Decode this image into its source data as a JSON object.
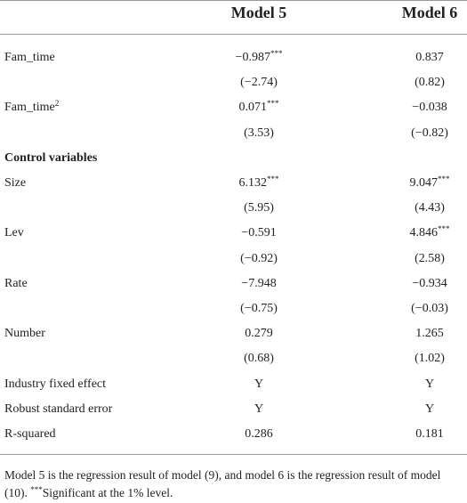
{
  "table": {
    "header": [
      "Model 5",
      "Model 6"
    ],
    "rows": [
      {
        "label": "Fam_time",
        "cells": [
          {
            "value": "−0.987",
            "sig": "***"
          },
          {
            "value": "0.837"
          }
        ]
      },
      {
        "cells": [
          {
            "value": "(−2.74)"
          },
          {
            "value": "(0.82)"
          }
        ]
      },
      {
        "label": "Fam_time",
        "label_sup": "2",
        "cells": [
          {
            "value": "0.071",
            "sig": "***"
          },
          {
            "value": "−0.038"
          }
        ]
      },
      {
        "cells": [
          {
            "value": "(3.53)"
          },
          {
            "value": "(−0.82)"
          }
        ]
      },
      {
        "label": "Control variables",
        "cells": []
      },
      {
        "label": "Size",
        "cells": [
          {
            "value": "6.132",
            "sig": "***"
          },
          {
            "value": "9.047",
            "sig": "***"
          }
        ]
      },
      {
        "cells": [
          {
            "value": "(5.95)"
          },
          {
            "value": "(4.43)"
          }
        ]
      },
      {
        "label": "Lev",
        "cells": [
          {
            "value": "−0.591"
          },
          {
            "value": "4.846",
            "sig": "***"
          }
        ]
      },
      {
        "cells": [
          {
            "value": "(−0.92)"
          },
          {
            "value": "(2.58)"
          }
        ]
      },
      {
        "label": "Rate",
        "cells": [
          {
            "value": "−7.948"
          },
          {
            "value": "−0.934"
          }
        ]
      },
      {
        "cells": [
          {
            "value": "(−0.75)"
          },
          {
            "value": "(−0.03)"
          }
        ]
      },
      {
        "label": "Number",
        "cells": [
          {
            "value": "0.279"
          },
          {
            "value": "1.265"
          }
        ]
      },
      {
        "cells": [
          {
            "value": "(0.68)"
          },
          {
            "value": "(1.02)"
          }
        ]
      },
      {
        "label": "Industry fixed effect",
        "cells": [
          {
            "value": "Y"
          },
          {
            "value": "Y"
          }
        ]
      },
      {
        "label": "Robust standard error",
        "cells": [
          {
            "value": "Y"
          },
          {
            "value": "Y"
          }
        ]
      },
      {
        "label": "R-squared",
        "cells": [
          {
            "value": "0.286"
          },
          {
            "value": "0.181"
          }
        ]
      }
    ],
    "note": [
      "Model 5 is the regression result of model (9), and model 6 is the regression result of model (10). ",
      "***",
      "Significant at the 1% level."
    ]
  }
}
